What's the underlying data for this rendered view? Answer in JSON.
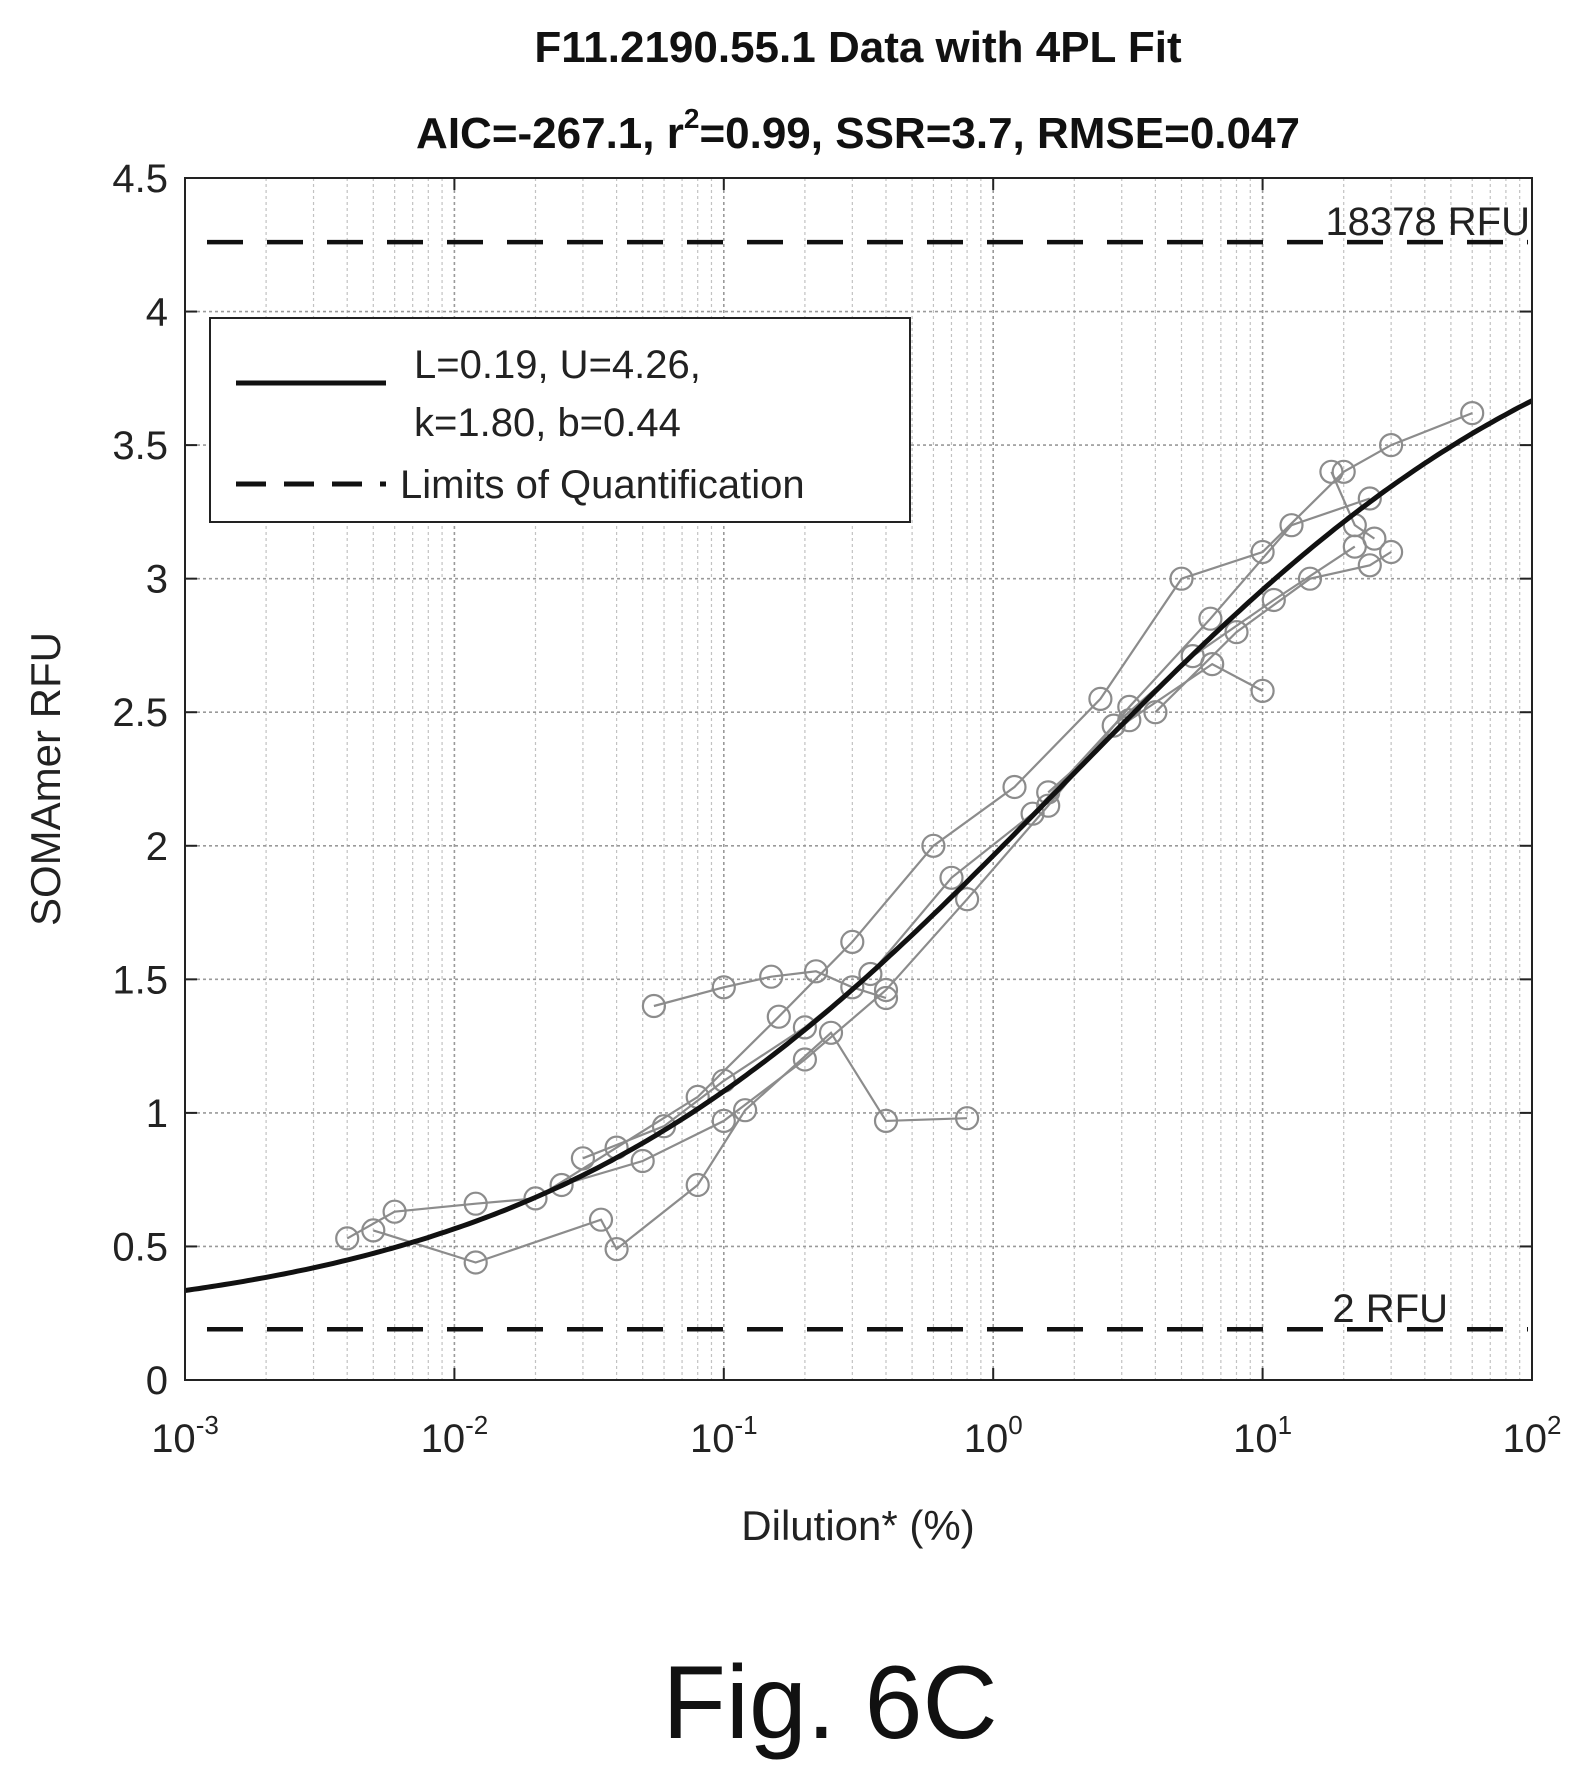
{
  "chart_data": {
    "type": "scatter",
    "title": "F11.2190.55.1 Data with 4PL Fit",
    "subtitle_parts": [
      "AIC=-267.1, r",
      "2",
      "=0.99, SSR=3.7, RMSE=0.047"
    ],
    "xlabel": "Dilution* (%)",
    "ylabel": "SOMAmer RFU",
    "x_scale": "log",
    "xlim": [
      0.001,
      100
    ],
    "ylim": [
      0,
      4.5
    ],
    "grid": true,
    "legend_position": "top-left",
    "x_ticks": [
      {
        "value": 0.001,
        "base": "10",
        "exp": "-3"
      },
      {
        "value": 0.01,
        "base": "10",
        "exp": "-2"
      },
      {
        "value": 0.1,
        "base": "10",
        "exp": "-1"
      },
      {
        "value": 1,
        "base": "10",
        "exp": "0"
      },
      {
        "value": 10,
        "base": "10",
        "exp": "1"
      },
      {
        "value": 100,
        "base": "10",
        "exp": "2"
      }
    ],
    "y_ticks": [
      {
        "value": 0,
        "label": "0"
      },
      {
        "value": 0.5,
        "label": "0.5"
      },
      {
        "value": 1,
        "label": "1"
      },
      {
        "value": 1.5,
        "label": "1.5"
      },
      {
        "value": 2,
        "label": "2"
      },
      {
        "value": 2.5,
        "label": "2.5"
      },
      {
        "value": 3,
        "label": "3"
      },
      {
        "value": 3.5,
        "label": "3.5"
      },
      {
        "value": 4,
        "label": "4"
      },
      {
        "value": 4.5,
        "label": "4.5"
      }
    ],
    "fit": {
      "name_lines": [
        "L=0.19, U=4.26,",
        "k=1.80, b=0.44"
      ],
      "L": 0.19,
      "U": 4.26,
      "k": 1.8,
      "b": 0.44,
      "color": "#111111"
    },
    "limits": {
      "name": "Limits of Quantification",
      "upper": {
        "value": 4.26,
        "label": "18378 RFU"
      },
      "lower": {
        "value": 0.19,
        "label": "2 RFU"
      }
    },
    "series": [
      {
        "points": [
          [
            0.004,
            0.53
          ],
          [
            0.006,
            0.63
          ],
          [
            0.012,
            0.66
          ],
          [
            0.02,
            0.68
          ],
          [
            0.04,
            0.87
          ],
          [
            0.08,
            1.06
          ],
          [
            0.16,
            1.36
          ],
          [
            0.3,
            1.64
          ],
          [
            0.6,
            2.0
          ],
          [
            1.2,
            2.22
          ],
          [
            2.5,
            2.55
          ],
          [
            5,
            3.0
          ],
          [
            10,
            3.1
          ],
          [
            20,
            3.4
          ],
          [
            30,
            3.5
          ],
          [
            60,
            3.62
          ]
        ]
      },
      {
        "points": [
          [
            0.005,
            0.56
          ],
          [
            0.012,
            0.44
          ],
          [
            0.035,
            0.6
          ],
          [
            0.04,
            0.49
          ],
          [
            0.08,
            0.73
          ],
          [
            0.12,
            1.01
          ],
          [
            0.25,
            1.3
          ],
          [
            0.4,
            0.97
          ],
          [
            0.8,
            0.98
          ]
        ]
      },
      {
        "points": [
          [
            0.055,
            1.4
          ],
          [
            0.1,
            1.47
          ],
          [
            0.15,
            1.51
          ],
          [
            0.22,
            1.53
          ],
          [
            0.3,
            1.47
          ],
          [
            0.4,
            1.43
          ]
        ]
      },
      {
        "points": [
          [
            0.03,
            0.83
          ],
          [
            0.06,
            0.95
          ],
          [
            0.1,
            1.12
          ],
          [
            0.2,
            1.32
          ],
          [
            0.35,
            1.52
          ],
          [
            0.7,
            1.88
          ],
          [
            1.4,
            2.12
          ],
          [
            2.8,
            2.45
          ],
          [
            5.5,
            2.71
          ],
          [
            11,
            2.92
          ],
          [
            22,
            3.12
          ]
        ]
      },
      {
        "points": [
          [
            1.6,
            2.2
          ],
          [
            3.2,
            2.47
          ],
          [
            6.5,
            2.68
          ],
          [
            10,
            2.58
          ]
        ]
      },
      {
        "points": [
          [
            4,
            2.5
          ],
          [
            8,
            2.8
          ],
          [
            15,
            3.0
          ],
          [
            25,
            3.05
          ],
          [
            30,
            3.1
          ]
        ]
      },
      {
        "points": [
          [
            18,
            3.4
          ],
          [
            22,
            3.2
          ],
          [
            26,
            3.15
          ]
        ]
      },
      {
        "points": [
          [
            0.025,
            0.73
          ],
          [
            0.05,
            0.82
          ],
          [
            0.1,
            0.97
          ],
          [
            0.2,
            1.2
          ],
          [
            0.4,
            1.46
          ],
          [
            0.8,
            1.8
          ],
          [
            1.6,
            2.15
          ],
          [
            3.2,
            2.52
          ],
          [
            6.4,
            2.85
          ],
          [
            12.8,
            3.2
          ],
          [
            25,
            3.3
          ]
        ]
      }
    ]
  },
  "caption": "Fig. 6C"
}
